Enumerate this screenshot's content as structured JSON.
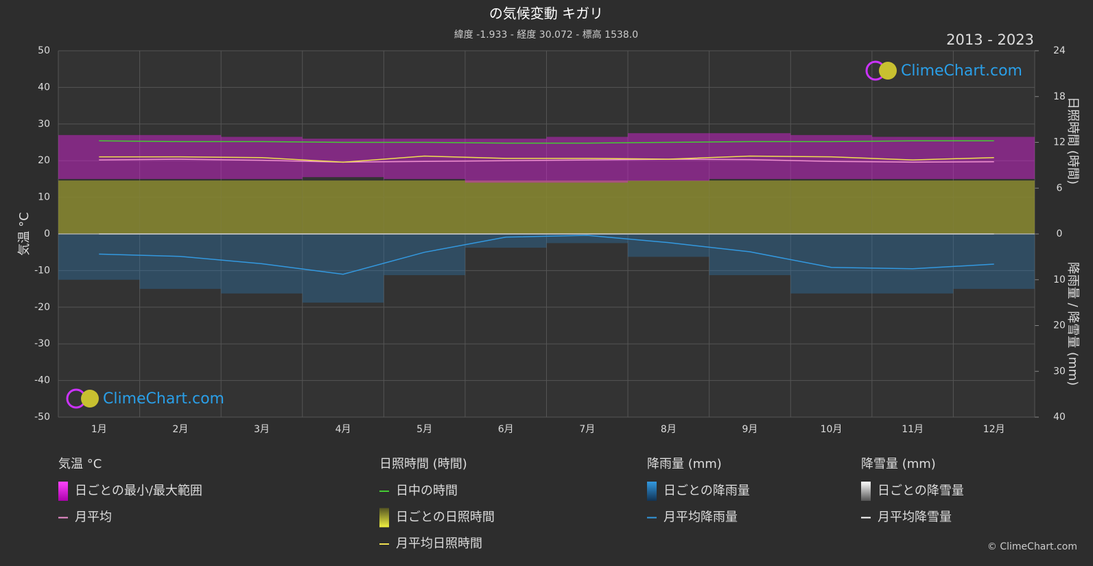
{
  "chart_data": {
    "type": "line",
    "title": "の気候変動 キガリ",
    "subtitle": "緯度 -1.933 - 経度 30.072 - 標高 1538.0",
    "period": "2013 - 2023",
    "watermark": "ClimeChart.com",
    "copyright": "© ClimeChart.com",
    "categories": [
      "1月",
      "2月",
      "3月",
      "4月",
      "5月",
      "6月",
      "7月",
      "8月",
      "9月",
      "10月",
      "11月",
      "12月"
    ],
    "ylabel": "気温 °C",
    "y2label": "日照時間 (時間)",
    "y3label": "降雨量 / 降雪量 (mm)",
    "ylim": [
      -50,
      50
    ],
    "yticks": [
      -50,
      -40,
      -30,
      -20,
      -10,
      0,
      10,
      20,
      30,
      40,
      50
    ],
    "y2lim": [
      0,
      24
    ],
    "y2ticks": [
      0,
      6,
      12,
      18,
      24
    ],
    "y3lim": [
      0,
      40
    ],
    "y3ticks": [
      0,
      10,
      20,
      30,
      40
    ],
    "grid": true,
    "legend_groups": [
      "気温 °C",
      "日照時間 (時間)",
      "降雨量 (mm)",
      "降雪量 (mm)"
    ],
    "series": [
      {
        "name": "日ごとの最小/最大範囲",
        "group": 0,
        "kind": "range",
        "axis": "y",
        "color": "#e020e0",
        "low": [
          15,
          15,
          15,
          15.5,
          15,
          14,
          14,
          14.5,
          15,
          15,
          15,
          15
        ],
        "high": [
          27,
          27,
          26.5,
          26,
          26,
          26,
          26.5,
          27.5,
          27.5,
          27,
          26.5,
          26.5
        ]
      },
      {
        "name": "月平均",
        "group": 0,
        "kind": "line",
        "axis": "y",
        "color": "#f090d0",
        "values": [
          20.2,
          20.4,
          20.1,
          19.6,
          19.8,
          20.0,
          20.2,
          20.4,
          20.3,
          19.8,
          19.6,
          19.7
        ]
      },
      {
        "name": "日中の時間",
        "group": 1,
        "kind": "line",
        "axis": "y2",
        "color": "#44cc33",
        "values": [
          12.2,
          12.1,
          12.1,
          12.0,
          12.0,
          11.9,
          11.9,
          12.0,
          12.1,
          12.1,
          12.2,
          12.2
        ]
      },
      {
        "name": "日ごとの日照時間",
        "group": 1,
        "kind": "area",
        "axis": "y2",
        "color": "#8a8a30",
        "values": [
          7.0,
          7.0,
          7.0,
          7.0,
          7.0,
          7.0,
          7.0,
          7.0,
          7.0,
          7.0,
          7.0,
          7.0
        ]
      },
      {
        "name": "月平均日照時間",
        "group": 1,
        "kind": "line",
        "axis": "y2",
        "color": "#f0e050",
        "values": [
          10.1,
          10.1,
          10.0,
          9.4,
          10.2,
          9.9,
          9.9,
          9.8,
          10.2,
          10.1,
          9.7,
          10.0
        ]
      },
      {
        "name": "日ごとの降雨量",
        "group": 2,
        "kind": "bar",
        "axis": "y3",
        "color": "#2a7ab8",
        "values": [
          10,
          12,
          13,
          15,
          9,
          3,
          2,
          5,
          9,
          13,
          13,
          12
        ]
      },
      {
        "name": "月平均降雨量",
        "group": 2,
        "kind": "line",
        "axis": "y3",
        "color": "#3399e0",
        "values": [
          4.4,
          4.9,
          6.5,
          8.8,
          4.0,
          0.7,
          0.3,
          1.9,
          3.9,
          7.3,
          7.6,
          6.6
        ]
      },
      {
        "name": "日ごとの降雪量",
        "group": 3,
        "kind": "bar",
        "axis": "y3",
        "color": "#ffffff",
        "values": [
          0,
          0,
          0,
          0,
          0,
          0,
          0,
          0,
          0,
          0,
          0,
          0
        ]
      },
      {
        "name": "月平均降雪量",
        "group": 3,
        "kind": "line",
        "axis": "y3",
        "color": "#ffffff",
        "values": [
          0,
          0,
          0,
          0,
          0,
          0,
          0,
          0,
          0,
          0,
          0,
          0
        ]
      }
    ]
  }
}
